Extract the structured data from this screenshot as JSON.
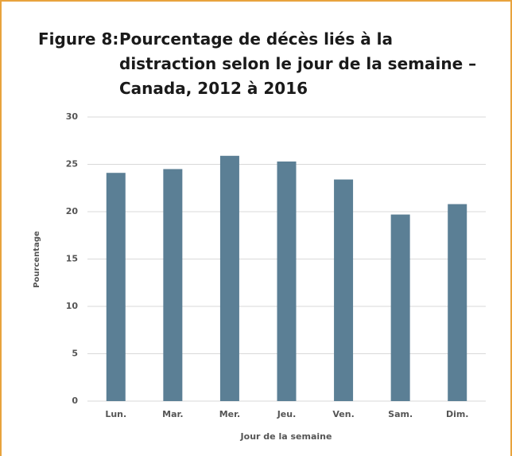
{
  "chart_data": {
    "type": "bar",
    "figure_label": "Figure 8:",
    "title": "Pourcentage de décès liés à la distraction selon le jour de la semaine – Canada, 2012 à 2016",
    "x_label": "Jour de la semaine",
    "y_label": "Pourcentage",
    "categories": [
      "Lun.",
      "Mar.",
      "Mer.",
      "Jeu.",
      "Ven.",
      "Sam.",
      "Dim."
    ],
    "values": [
      24.1,
      24.5,
      25.9,
      25.3,
      23.4,
      19.7,
      20.8
    ],
    "color": "#5b7f95",
    "ylim": [
      0,
      30
    ],
    "yticks": [
      0,
      5,
      10,
      15,
      20,
      25,
      30
    ],
    "grid": true
  }
}
